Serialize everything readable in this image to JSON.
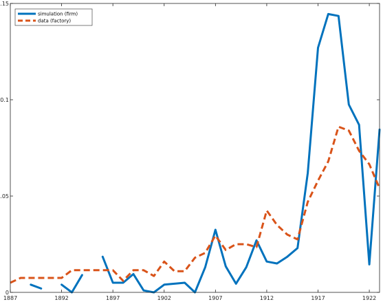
{
  "chart_data": {
    "type": "line",
    "xlim": [
      1887,
      1923
    ],
    "ylim": [
      0,
      0.15
    ],
    "x_ticks": [
      1887,
      1892,
      1897,
      1902,
      1907,
      1912,
      1917,
      1922
    ],
    "x_tick_labels": [
      "1887",
      "1892",
      "1897",
      "1902",
      "1907",
      "1912",
      "1917",
      "1922"
    ],
    "y_ticks": [
      0,
      0.05,
      0.1,
      0.15
    ],
    "y_tick_labels": [
      "0",
      "0.05",
      "0.1",
      "0.15"
    ],
    "grid": false,
    "legend_position": "top-left",
    "series": [
      {
        "name": "simulation (firm)",
        "color": "#0072BD",
        "style": "solid",
        "x": [
          1887,
          1888,
          1889,
          1890,
          1891,
          1892,
          1893,
          1894,
          1895,
          1896,
          1897,
          1898,
          1899,
          1900,
          1901,
          1902,
          1903,
          1904,
          1905,
          1906,
          1907,
          1908,
          1909,
          1910,
          1911,
          1912,
          1913,
          1914,
          1915,
          1916,
          1917,
          1918,
          1919,
          1920,
          1921,
          1922,
          1923
        ],
        "y": [
          null,
          null,
          0.004,
          0.002,
          null,
          0.004,
          0.0,
          0.009,
          null,
          0.0185,
          0.005,
          0.005,
          0.0095,
          0.001,
          0.0,
          0.004,
          0.0045,
          0.005,
          0.0,
          0.013,
          0.0325,
          0.0135,
          0.0045,
          0.013,
          0.027,
          0.016,
          0.015,
          0.0185,
          0.023,
          0.062,
          0.127,
          0.1445,
          0.1435,
          0.0975,
          0.087,
          0.0145,
          0.0845
        ]
      },
      {
        "name": "data (factory)",
        "color": "#D95319",
        "style": "dashed",
        "x": [
          1887,
          1888,
          1889,
          1890,
          1891,
          1892,
          1893,
          1894,
          1895,
          1896,
          1897,
          1898,
          1899,
          1900,
          1901,
          1902,
          1903,
          1904,
          1905,
          1906,
          1907,
          1908,
          1909,
          1910,
          1911,
          1912,
          1913,
          1914,
          1915,
          1916,
          1917,
          1918,
          1919,
          1920,
          1921,
          1922,
          1923
        ],
        "y": [
          0.005,
          0.0075,
          0.0075,
          0.0075,
          0.0075,
          0.0075,
          0.0115,
          0.0115,
          0.0115,
          0.0115,
          0.0115,
          0.006,
          0.0115,
          0.0115,
          0.0085,
          0.016,
          0.011,
          0.011,
          0.018,
          0.0205,
          0.0295,
          0.022,
          0.025,
          0.025,
          0.0235,
          0.0425,
          0.035,
          0.03,
          0.0275,
          0.047,
          0.058,
          0.068,
          0.086,
          0.084,
          0.0735,
          0.0665,
          0.054
        ]
      }
    ]
  }
}
